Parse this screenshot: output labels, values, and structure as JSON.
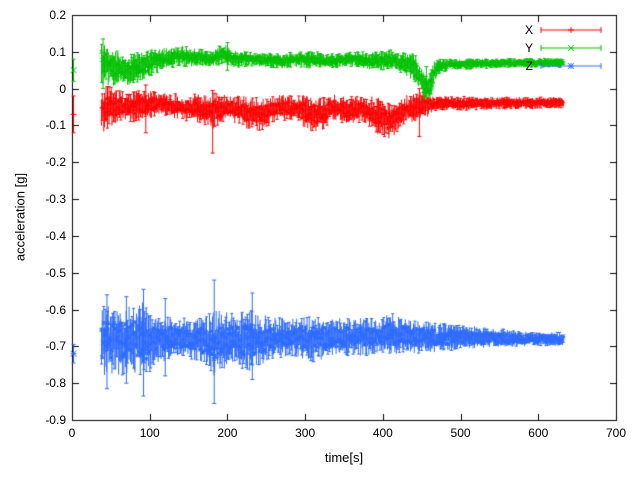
{
  "figure": {
    "background": "#ffffff"
  },
  "chart_data": {
    "type": "scatter",
    "title": "",
    "xlabel": "time[s]",
    "ylabel": "acceleration [g]",
    "xlim": [
      0,
      700
    ],
    "ylim": [
      -0.9,
      0.2
    ],
    "x_ticks": [
      0,
      100,
      200,
      300,
      400,
      500,
      600,
      700
    ],
    "y_ticks": [
      0.2,
      0.1,
      0,
      -0.1,
      -0.2,
      -0.3,
      -0.4,
      -0.5,
      -0.6,
      -0.7,
      -0.8,
      -0.9
    ],
    "grid": false,
    "axis_color": "#000000",
    "legend_position": "top-right-inside",
    "style": "errorbars-with-points",
    "series": [
      {
        "name": "X",
        "color": "#ff0000",
        "marker": "plus",
        "x_start": 38,
        "x_end": 632,
        "initial_point": {
          "x": 2,
          "y": -0.07,
          "err": 0.05
        },
        "envelope": [
          [
            38,
            -0.055,
            0.07
          ],
          [
            55,
            -0.05,
            0.05
          ],
          [
            75,
            -0.05,
            0.04
          ],
          [
            95,
            -0.045,
            0.045
          ],
          [
            110,
            -0.04,
            0.03
          ],
          [
            140,
            -0.05,
            0.035
          ],
          [
            165,
            -0.055,
            0.04
          ],
          [
            182,
            -0.06,
            0.05
          ],
          [
            200,
            -0.05,
            0.035
          ],
          [
            225,
            -0.065,
            0.045
          ],
          [
            245,
            -0.07,
            0.045
          ],
          [
            265,
            -0.05,
            0.035
          ],
          [
            285,
            -0.055,
            0.035
          ],
          [
            305,
            -0.065,
            0.05
          ],
          [
            320,
            -0.07,
            0.05
          ],
          [
            335,
            -0.05,
            0.035
          ],
          [
            355,
            -0.06,
            0.04
          ],
          [
            375,
            -0.055,
            0.04
          ],
          [
            395,
            -0.075,
            0.05
          ],
          [
            410,
            -0.09,
            0.05
          ],
          [
            425,
            -0.06,
            0.04
          ],
          [
            440,
            -0.05,
            0.04
          ],
          [
            455,
            -0.045,
            0.035
          ],
          [
            470,
            -0.04,
            0.02
          ],
          [
            520,
            -0.04,
            0.018
          ],
          [
            632,
            -0.038,
            0.015
          ]
        ],
        "spikes": [
          [
            95,
            -0.12,
            0.01
          ],
          [
            181,
            -0.175,
            -0.005
          ],
          [
            447,
            -0.13,
            0.0
          ]
        ]
      },
      {
        "name": "Y",
        "color": "#00c000",
        "marker": "cross",
        "x_start": 38,
        "x_end": 632,
        "initial_point": {
          "x": 2,
          "y": 0.05,
          "err": 0.03
        },
        "envelope": [
          [
            38,
            0.07,
            0.06
          ],
          [
            55,
            0.055,
            0.05
          ],
          [
            75,
            0.05,
            0.045
          ],
          [
            95,
            0.065,
            0.04
          ],
          [
            115,
            0.08,
            0.03
          ],
          [
            135,
            0.09,
            0.03
          ],
          [
            160,
            0.085,
            0.025
          ],
          [
            180,
            0.08,
            0.02
          ],
          [
            195,
            0.095,
            0.03
          ],
          [
            210,
            0.08,
            0.022
          ],
          [
            240,
            0.08,
            0.02
          ],
          [
            270,
            0.075,
            0.02
          ],
          [
            300,
            0.08,
            0.025
          ],
          [
            330,
            0.075,
            0.02
          ],
          [
            360,
            0.08,
            0.02
          ],
          [
            390,
            0.075,
            0.025
          ],
          [
            410,
            0.08,
            0.03
          ],
          [
            425,
            0.07,
            0.03
          ],
          [
            440,
            0.06,
            0.04
          ],
          [
            452,
            0.01,
            0.04
          ],
          [
            458,
            -0.005,
            0.03
          ],
          [
            464,
            0.03,
            0.04
          ],
          [
            470,
            0.06,
            0.02
          ],
          [
            485,
            0.065,
            0.015
          ],
          [
            560,
            0.07,
            0.012
          ],
          [
            632,
            0.07,
            0.012
          ]
        ],
        "spikes": [
          [
            40,
            0.0,
            0.135
          ],
          [
            200,
            0.05,
            0.125
          ],
          [
            456,
            -0.03,
            0.06
          ]
        ]
      },
      {
        "name": "Z",
        "color": "#2e6bff",
        "marker": "asterisk",
        "x_start": 38,
        "x_end": 632,
        "initial_point": {
          "x": 2,
          "y": -0.72,
          "err": 0.025
        },
        "envelope": [
          [
            38,
            -0.68,
            0.1
          ],
          [
            55,
            -0.685,
            0.1
          ],
          [
            75,
            -0.68,
            0.09
          ],
          [
            92,
            -0.685,
            0.11
          ],
          [
            110,
            -0.68,
            0.07
          ],
          [
            135,
            -0.675,
            0.05
          ],
          [
            160,
            -0.68,
            0.06
          ],
          [
            183,
            -0.69,
            0.09
          ],
          [
            205,
            -0.68,
            0.07
          ],
          [
            230,
            -0.685,
            0.085
          ],
          [
            255,
            -0.68,
            0.06
          ],
          [
            280,
            -0.675,
            0.05
          ],
          [
            310,
            -0.68,
            0.065
          ],
          [
            335,
            -0.675,
            0.05
          ],
          [
            365,
            -0.675,
            0.055
          ],
          [
            395,
            -0.67,
            0.05
          ],
          [
            415,
            -0.665,
            0.055
          ],
          [
            440,
            -0.675,
            0.045
          ],
          [
            470,
            -0.675,
            0.04
          ],
          [
            510,
            -0.675,
            0.032
          ],
          [
            550,
            -0.678,
            0.026
          ],
          [
            590,
            -0.68,
            0.02
          ],
          [
            632,
            -0.68,
            0.018
          ]
        ],
        "spikes": [
          [
            45,
            -0.815,
            -0.56
          ],
          [
            70,
            -0.8,
            -0.565
          ],
          [
            92,
            -0.835,
            -0.545
          ],
          [
            120,
            -0.78,
            -0.57
          ],
          [
            183,
            -0.855,
            -0.52
          ],
          [
            232,
            -0.79,
            -0.555
          ]
        ]
      }
    ]
  }
}
